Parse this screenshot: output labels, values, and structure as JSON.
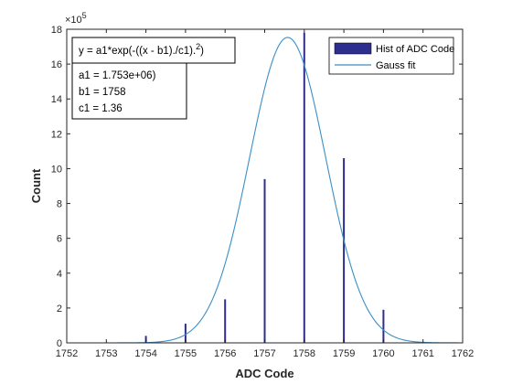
{
  "chart_data": {
    "type": "bar",
    "xlabel": "ADC Code",
    "ylabel": "Count",
    "xlim": [
      1752,
      1762
    ],
    "ylim": [
      0,
      18
    ],
    "y_exponent_label": "×10",
    "y_exponent_power": "5",
    "x_ticks": [
      "1752",
      "1753",
      "1754",
      "1755",
      "1756",
      "1757",
      "1758",
      "1759",
      "1760",
      "1761",
      "1762"
    ],
    "y_ticks": [
      "0",
      "2",
      "4",
      "6",
      "8",
      "10",
      "12",
      "14",
      "16",
      "18"
    ],
    "grid": false,
    "legend_position": "top-right",
    "series": [
      {
        "name": "Hist of ADC Code",
        "kind": "bar",
        "color": "#2e2e8f",
        "x": [
          1754,
          1755,
          1756,
          1757,
          1758,
          1759,
          1760
        ],
        "y": [
          0.4,
          1.1,
          2.5,
          9.4,
          17.8,
          10.6,
          1.9
        ]
      },
      {
        "name": "Gauss fit",
        "kind": "line",
        "color": "#3a8fc8",
        "a1": 17.53,
        "b1": 1757.58,
        "c1": 1.36
      }
    ],
    "annotation": {
      "formula_prefix": "y = a1*exp(-((x - b1)./c1).",
      "formula_power": "2",
      "formula_suffix": ")",
      "lines": [
        "a1 =   1.753e+06)",
        "b1 =  1758",
        "c1 =  1.36"
      ]
    }
  }
}
